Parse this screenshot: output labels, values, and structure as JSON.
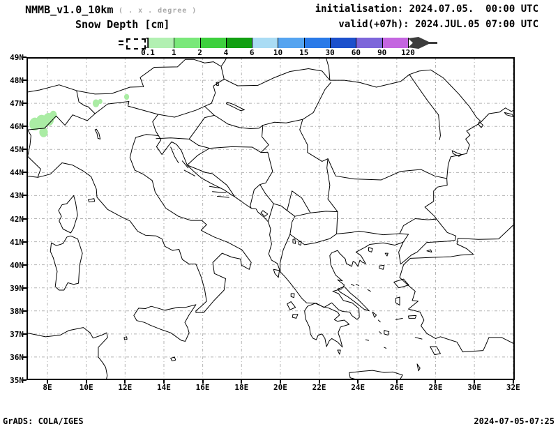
{
  "header": {
    "model_title": "NMMB_v1.0_10km",
    "model_subtitle": "( . x . degree )",
    "field_title": "Snow Depth [cm]",
    "init_line": "initialisation: 2024.07.05.  00:00 UTC",
    "valid_line": "valid(+07h): 2024.JUL.05 07:00 UTC"
  },
  "colorbar": {
    "tick_labels": [
      "0.1",
      "1",
      "2",
      "4",
      "6",
      "10",
      "15",
      "30",
      "60",
      "90",
      "120"
    ],
    "segment_colors": [
      "#b2f0b2",
      "#7ae87a",
      "#3ed03e",
      "#12a012",
      "#aadcf4",
      "#55a4f0",
      "#2a7ae8",
      "#1c50cc",
      "#7d66da",
      "#c466e0"
    ],
    "arrow_color": "#3c3c3c"
  },
  "axes": {
    "lat_labels": [
      "49N",
      "48N",
      "47N",
      "46N",
      "45N",
      "44N",
      "43N",
      "42N",
      "41N",
      "40N",
      "39N",
      "38N",
      "37N",
      "36N",
      "35N"
    ],
    "lon_labels": [
      "8E",
      "10E",
      "12E",
      "14E",
      "16E",
      "18E",
      "20E",
      "22E",
      "24E",
      "26E",
      "28E",
      "30E",
      "32E"
    ]
  },
  "map": {
    "lon_min": 6.92,
    "lon_max": 32.08,
    "lat_min": 35,
    "lat_max": 49,
    "lon_tick_start": 8,
    "lon_tick_step": 2,
    "lat_tick_step": 1,
    "grid_color": "#b4b4b4",
    "snow_color": "#aaeca4",
    "snow_patches": [
      {
        "lon": 7.35,
        "lat": 46.1,
        "r": 0.28
      },
      {
        "lon": 7.7,
        "lat": 46.2,
        "r": 0.3
      },
      {
        "lon": 8.05,
        "lat": 46.3,
        "r": 0.28
      },
      {
        "lon": 8.3,
        "lat": 46.5,
        "r": 0.18
      },
      {
        "lon": 7.8,
        "lat": 45.75,
        "r": 0.22
      },
      {
        "lon": 10.5,
        "lat": 47.0,
        "r": 0.17
      },
      {
        "lon": 10.72,
        "lat": 47.08,
        "r": 0.11
      },
      {
        "lon": 12.08,
        "lat": 47.28,
        "r": 0.13
      }
    ]
  },
  "footer": {
    "left": "GrADS: COLA/IGES",
    "right": "2024-07-05-07:25"
  }
}
